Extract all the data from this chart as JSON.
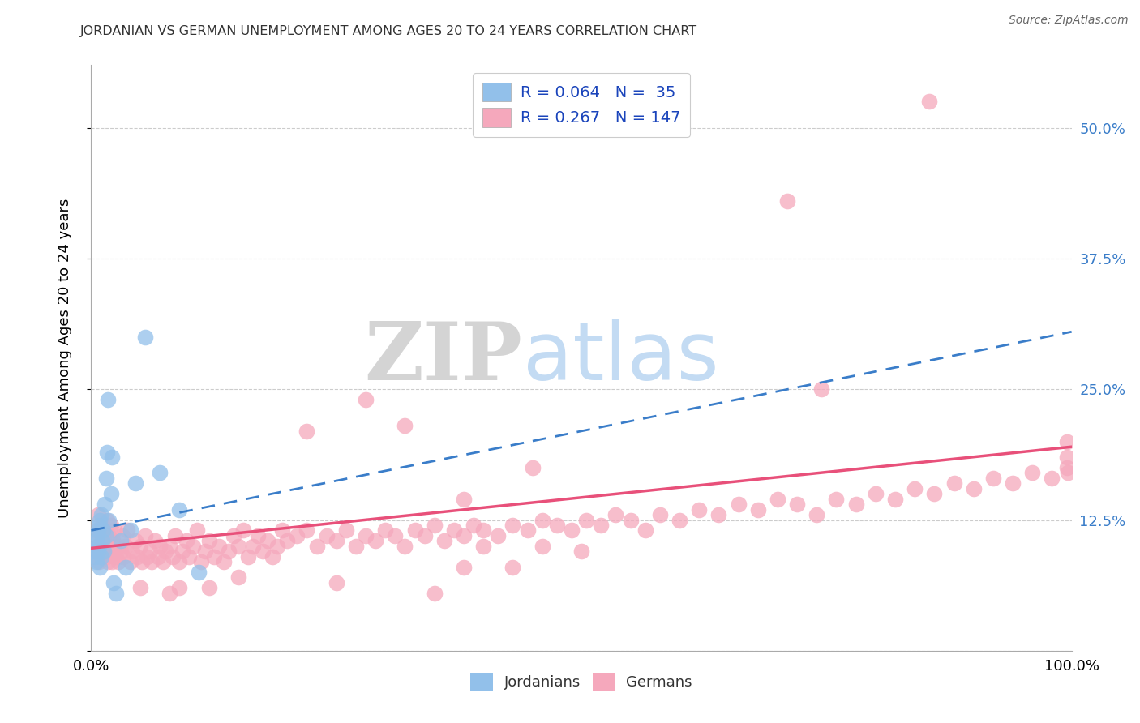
{
  "title": "JORDANIAN VS GERMAN UNEMPLOYMENT AMONG AGES 20 TO 24 YEARS CORRELATION CHART",
  "source": "Source: ZipAtlas.com",
  "ylabel": "Unemployment Among Ages 20 to 24 years",
  "xlim": [
    0.0,
    1.0
  ],
  "ylim": [
    0.0,
    0.56
  ],
  "jordanian_R": 0.064,
  "jordanian_N": 35,
  "german_R": 0.267,
  "german_N": 147,
  "jordanian_color": "#92c0ea",
  "german_color": "#f5a8bc",
  "jordanian_line_color": "#3a7dc9",
  "german_line_color": "#e8507a",
  "background_color": "#ffffff",
  "jord_line_start_y": 0.115,
  "jord_line_end_y": 0.305,
  "germ_line_start_y": 0.098,
  "germ_line_end_y": 0.195,
  "jordanian_x": [
    0.003,
    0.004,
    0.005,
    0.005,
    0.006,
    0.006,
    0.007,
    0.007,
    0.008,
    0.008,
    0.009,
    0.009,
    0.01,
    0.01,
    0.011,
    0.012,
    0.013,
    0.014,
    0.015,
    0.015,
    0.016,
    0.017,
    0.018,
    0.02,
    0.021,
    0.023,
    0.025,
    0.03,
    0.035,
    0.04,
    0.045,
    0.055,
    0.07,
    0.09,
    0.11
  ],
  "jordanian_y": [
    0.095,
    0.09,
    0.085,
    0.105,
    0.1,
    0.11,
    0.095,
    0.115,
    0.1,
    0.12,
    0.08,
    0.125,
    0.09,
    0.13,
    0.105,
    0.115,
    0.095,
    0.14,
    0.11,
    0.165,
    0.19,
    0.24,
    0.125,
    0.15,
    0.185,
    0.065,
    0.055,
    0.105,
    0.08,
    0.115,
    0.16,
    0.3,
    0.17,
    0.135,
    0.075
  ],
  "german_x": [
    0.005,
    0.006,
    0.007,
    0.008,
    0.009,
    0.01,
    0.011,
    0.012,
    0.013,
    0.014,
    0.015,
    0.016,
    0.017,
    0.018,
    0.019,
    0.02,
    0.021,
    0.022,
    0.023,
    0.024,
    0.025,
    0.027,
    0.028,
    0.03,
    0.032,
    0.033,
    0.035,
    0.037,
    0.04,
    0.042,
    0.045,
    0.047,
    0.05,
    0.052,
    0.055,
    0.057,
    0.06,
    0.062,
    0.065,
    0.068,
    0.07,
    0.073,
    0.076,
    0.08,
    0.083,
    0.086,
    0.09,
    0.093,
    0.097,
    0.1,
    0.104,
    0.108,
    0.112,
    0.116,
    0.12,
    0.125,
    0.13,
    0.135,
    0.14,
    0.145,
    0.15,
    0.155,
    0.16,
    0.165,
    0.17,
    0.175,
    0.18,
    0.185,
    0.19,
    0.195,
    0.2,
    0.21,
    0.22,
    0.23,
    0.24,
    0.25,
    0.26,
    0.27,
    0.28,
    0.29,
    0.3,
    0.31,
    0.32,
    0.33,
    0.34,
    0.35,
    0.36,
    0.37,
    0.38,
    0.39,
    0.4,
    0.415,
    0.43,
    0.445,
    0.46,
    0.475,
    0.49,
    0.505,
    0.52,
    0.535,
    0.55,
    0.565,
    0.58,
    0.6,
    0.62,
    0.64,
    0.66,
    0.68,
    0.7,
    0.72,
    0.74,
    0.76,
    0.78,
    0.8,
    0.82,
    0.84,
    0.86,
    0.88,
    0.9,
    0.92,
    0.94,
    0.96,
    0.98,
    0.995,
    0.71,
    0.745,
    0.855,
    0.995,
    0.995,
    0.996,
    0.15,
    0.25,
    0.35,
    0.05,
    0.08,
    0.09,
    0.12,
    0.45,
    0.4,
    0.38,
    0.28,
    0.32,
    0.22,
    0.43,
    0.38,
    0.46,
    0.5
  ],
  "german_y": [
    0.115,
    0.095,
    0.13,
    0.085,
    0.11,
    0.1,
    0.12,
    0.095,
    0.105,
    0.115,
    0.09,
    0.125,
    0.085,
    0.11,
    0.1,
    0.12,
    0.085,
    0.105,
    0.095,
    0.115,
    0.09,
    0.1,
    0.085,
    0.095,
    0.11,
    0.09,
    0.1,
    0.115,
    0.085,
    0.095,
    0.105,
    0.09,
    0.1,
    0.085,
    0.11,
    0.09,
    0.095,
    0.085,
    0.105,
    0.09,
    0.1,
    0.085,
    0.095,
    0.1,
    0.09,
    0.11,
    0.085,
    0.095,
    0.105,
    0.09,
    0.1,
    0.115,
    0.085,
    0.095,
    0.105,
    0.09,
    0.1,
    0.085,
    0.095,
    0.11,
    0.1,
    0.115,
    0.09,
    0.1,
    0.11,
    0.095,
    0.105,
    0.09,
    0.1,
    0.115,
    0.105,
    0.11,
    0.115,
    0.1,
    0.11,
    0.105,
    0.115,
    0.1,
    0.11,
    0.105,
    0.115,
    0.11,
    0.1,
    0.115,
    0.11,
    0.12,
    0.105,
    0.115,
    0.11,
    0.12,
    0.115,
    0.11,
    0.12,
    0.115,
    0.125,
    0.12,
    0.115,
    0.125,
    0.12,
    0.13,
    0.125,
    0.115,
    0.13,
    0.125,
    0.135,
    0.13,
    0.14,
    0.135,
    0.145,
    0.14,
    0.13,
    0.145,
    0.14,
    0.15,
    0.145,
    0.155,
    0.15,
    0.16,
    0.155,
    0.165,
    0.16,
    0.17,
    0.165,
    0.2,
    0.43,
    0.25,
    0.525,
    0.185,
    0.175,
    0.17,
    0.07,
    0.065,
    0.055,
    0.06,
    0.055,
    0.06,
    0.06,
    0.175,
    0.1,
    0.08,
    0.24,
    0.215,
    0.21,
    0.08,
    0.145,
    0.1,
    0.095
  ]
}
